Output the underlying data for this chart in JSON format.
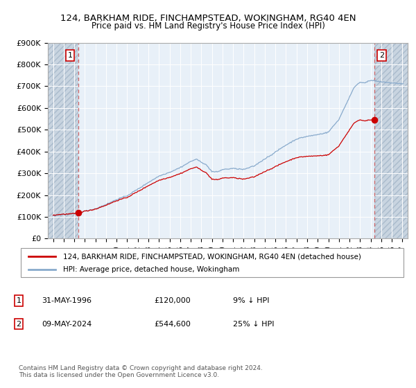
{
  "title": "124, BARKHAM RIDE, FINCHAMPSTEAD, WOKINGHAM, RG40 4EN",
  "subtitle": "Price paid vs. HM Land Registry's House Price Index (HPI)",
  "ylim": [
    0,
    900000
  ],
  "yticks": [
    0,
    100000,
    200000,
    300000,
    400000,
    500000,
    600000,
    700000,
    800000,
    900000
  ],
  "ytick_labels": [
    "£0",
    "£100K",
    "£200K",
    "£300K",
    "£400K",
    "£500K",
    "£600K",
    "£700K",
    "£800K",
    "£900K"
  ],
  "xlim_start": 1993.5,
  "xlim_end": 2027.5,
  "xticks": [
    1994,
    1995,
    1996,
    1997,
    1998,
    1999,
    2000,
    2001,
    2002,
    2003,
    2004,
    2005,
    2006,
    2007,
    2008,
    2009,
    2010,
    2011,
    2012,
    2013,
    2014,
    2015,
    2016,
    2017,
    2018,
    2019,
    2020,
    2021,
    2022,
    2023,
    2024,
    2025,
    2026,
    2027
  ],
  "transaction1": {
    "year": 1996.41,
    "price": 120000,
    "label": "1",
    "date": "31-MAY-1996",
    "price_str": "£120,000",
    "hpi_diff": "9% ↓ HPI"
  },
  "transaction2": {
    "year": 2024.36,
    "price": 544600,
    "label": "2",
    "date": "09-MAY-2024",
    "price_str": "£544,600",
    "hpi_diff": "25% ↓ HPI"
  },
  "red_line_color": "#cc0000",
  "blue_line_color": "#88aacc",
  "marker_color": "#cc0000",
  "bg_color": "#dde8f0",
  "plot_bg_color": "#e8f0f8",
  "hatch_color": "#c8d4e0",
  "grid_color": "#ffffff",
  "legend_red_label": "124, BARKHAM RIDE, FINCHAMPSTEAD, WOKINGHAM, RG40 4EN (detached house)",
  "legend_blue_label": "HPI: Average price, detached house, Wokingham",
  "footnote": "Contains HM Land Registry data © Crown copyright and database right 2024.\nThis data is licensed under the Open Government Licence v3.0."
}
